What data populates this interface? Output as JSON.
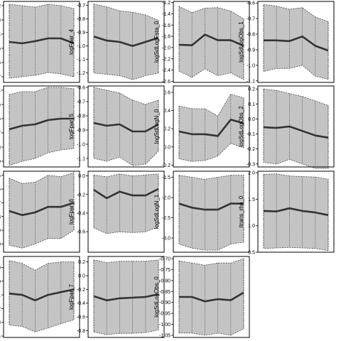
{
  "chart_data": [
    {
      "type": "line",
      "ylabel": "logFpar_0",
      "yticks": [
        "-0.2",
        "-0.3",
        "-0.4",
        "-0.5",
        "-0.6",
        "-0.7"
      ],
      "ylim": [
        -0.74,
        -0.17
      ],
      "x": [
        1,
        2,
        3,
        4,
        5,
        6
      ],
      "series": [
        {
          "values": [
            -0.455,
            -0.465,
            -0.45,
            -0.43,
            -0.43,
            -0.465
          ]
        }
      ],
      "band_upper": [
        -0.19,
        -0.2,
        -0.21,
        -0.19,
        -0.2,
        -0.22
      ],
      "band_lower": [
        -0.71,
        -0.7,
        -0.69,
        -0.67,
        -0.68,
        -0.7
      ]
    },
    {
      "type": "line",
      "ylabel": "logFpar_4",
      "yticks": [
        "-0.7",
        "-0.8",
        "-0.9",
        "-1.0",
        "-1.1",
        "-1.2"
      ],
      "ylim": [
        -1.27,
        -0.67
      ],
      "x": [
        1,
        2,
        3,
        4,
        5,
        6
      ],
      "series": [
        {
          "values": [
            -0.93,
            -0.96,
            -0.97,
            -1.0,
            -0.97,
            -0.94
          ]
        }
      ],
      "band_upper": [
        -0.69,
        -0.71,
        -0.74,
        -0.75,
        -0.77,
        -0.81
      ],
      "band_lower": [
        -1.2,
        -1.21,
        -1.22,
        -1.25,
        -1.22,
        -1.2
      ]
    },
    {
      "type": "line",
      "ylabel": "logSdLogFsta_0",
      "yticks": [
        "-1.2",
        "-1.4",
        "-1.6",
        "-1.8",
        "-2.0",
        "-2.2",
        "-2.4",
        "-2.6"
      ],
      "ylim": [
        -2.62,
        -1.18
      ],
      "x": [
        1,
        2,
        3,
        4,
        5,
        6
      ],
      "series": [
        {
          "values": [
            -1.95,
            -1.96,
            -1.77,
            -1.87,
            -1.87,
            -1.97
          ]
        }
      ],
      "band_upper": [
        -1.27,
        -1.38,
        -1.3,
        -1.29,
        -1.35,
        -1.49
      ],
      "band_lower": [
        -2.42,
        -2.53,
        -2.38,
        -2.5,
        -2.45,
        -2.57
      ]
    },
    {
      "type": "line",
      "ylabel": "logSdLogObs_1",
      "yticks": [
        "-0.6",
        "-0.7",
        "-0.8",
        "-0.9",
        "-1.0",
        "-1.1"
      ],
      "ylim": [
        -1.11,
        -0.59
      ],
      "x": [
        1,
        2,
        3,
        4,
        5,
        6
      ],
      "series": [
        {
          "values": [
            -0.84,
            -0.84,
            -0.845,
            -0.815,
            -0.875,
            -0.905
          ]
        }
      ],
      "band_upper": [
        -0.61,
        -0.62,
        -0.64,
        -0.63,
        -0.69,
        -0.72
      ],
      "band_lower": [
        -1.04,
        -1.02,
        -1.02,
        -1.0,
        -1.07,
        -1.09
      ]
    },
    {
      "type": "line",
      "ylabel": "logFpar_1",
      "yticks": [
        "-0.4",
        "-0.5",
        "-0.6",
        "-0.7",
        "-0.8",
        "-0.9"
      ],
      "ylim": [
        -0.94,
        -0.37
      ],
      "x": [
        1,
        2,
        3,
        4,
        5,
        6
      ],
      "series": [
        {
          "values": [
            -0.675,
            -0.65,
            -0.64,
            -0.61,
            -0.6,
            -0.6
          ]
        }
      ],
      "band_upper": [
        -0.43,
        -0.41,
        -0.41,
        -0.38,
        -0.38,
        -0.39
      ],
      "band_lower": [
        -0.93,
        -0.9,
        -0.88,
        -0.84,
        -0.82,
        -0.81
      ]
    },
    {
      "type": "line",
      "ylabel": "logFpar_5",
      "yticks": [
        "-0.6",
        "-0.7",
        "-0.8",
        "-0.9",
        "-1.0",
        "-1.1"
      ],
      "ylim": [
        -1.16,
        -0.59
      ],
      "x": [
        1,
        2,
        3,
        4,
        5,
        6
      ],
      "series": [
        {
          "values": [
            -0.85,
            -0.87,
            -0.86,
            -0.91,
            -0.91,
            -0.86
          ]
        }
      ],
      "band_upper": [
        -0.6,
        -0.62,
        -0.64,
        -0.69,
        -0.72,
        -0.69
      ],
      "band_lower": [
        -1.1,
        -1.12,
        -1.09,
        -1.15,
        -1.14,
        -1.05
      ]
    },
    {
      "type": "line",
      "ylabel": "logSdLogN_0",
      "yticks": [
        "0.6",
        "0.4",
        "0.2",
        "0.0",
        "-0.2"
      ],
      "ylim": [
        -0.22,
        0.67
      ],
      "x": [
        1,
        2,
        3,
        4,
        5,
        6
      ],
      "series": [
        {
          "values": [
            0.17,
            0.14,
            0.14,
            0.12,
            0.3,
            0.26
          ]
        }
      ],
      "band_upper": [
        0.45,
        0.42,
        0.42,
        0.34,
        0.58,
        0.54
      ],
      "band_lower": [
        -0.13,
        -0.16,
        -0.15,
        -0.1,
        0.04,
        -0.01
      ]
    },
    {
      "type": "line",
      "ylabel": "logSdLogObs_2",
      "yticks": [
        "0.2",
        "0.1",
        "0.0",
        "-0.1",
        "-0.2",
        "-0.3"
      ],
      "ylim": [
        -0.32,
        0.22
      ],
      "x": [
        1,
        2,
        3,
        4,
        5,
        6
      ],
      "series": [
        {
          "values": [
            -0.055,
            -0.06,
            -0.05,
            -0.08,
            -0.11,
            -0.125
          ]
        }
      ],
      "band_upper": [
        0.2,
        0.19,
        0.17,
        0.15,
        0.12,
        0.09
      ],
      "band_lower": [
        -0.29,
        -0.3,
        -0.27,
        -0.3,
        -0.33,
        -0.33
      ]
    },
    {
      "type": "line",
      "ylabel": "logFpar_2",
      "yticks": [
        "-0.5",
        "-0.6",
        "-0.7",
        "-0.8",
        "-0.9",
        "-1.0"
      ],
      "ylim": [
        -1.06,
        -0.47
      ],
      "x": [
        1,
        2,
        3,
        4,
        5,
        6
      ],
      "series": [
        {
          "values": [
            -0.76,
            -0.79,
            -0.77,
            -0.73,
            -0.73,
            -0.7
          ]
        }
      ],
      "band_upper": [
        -0.52,
        -0.56,
        -0.55,
        -0.5,
        -0.51,
        -0.48
      ],
      "band_lower": [
        -1.01,
        -1.03,
        -1.0,
        -0.96,
        -0.96,
        -0.9
      ]
    },
    {
      "type": "line",
      "ylabel": "logFpar_6",
      "yticks": [
        "0.0",
        "-0.2",
        "-0.4",
        "-0.6"
      ],
      "ylim": [
        -0.82,
        0.05
      ],
      "x": [
        1,
        2,
        3,
        4,
        5,
        6
      ],
      "series": [
        {
          "values": [
            -0.15,
            -0.24,
            -0.17,
            -0.21,
            -0.21,
            -0.14
          ]
        }
      ],
      "band_upper": [
        0.01,
        -0.01,
        0.02,
        0.0,
        0.01,
        0.02
      ],
      "band_lower": [
        -0.56,
        -0.62,
        -0.6,
        -0.61,
        -0.6,
        -0.55
      ]
    },
    {
      "type": "line",
      "ylabel": "logSdLogN_1",
      "yticks": [
        "-1.5",
        "-2.0",
        "-2.5",
        "-3.0"
      ],
      "ylim": [
        -3.35,
        -1.35
      ],
      "x": [
        1,
        2,
        3,
        4,
        5,
        6
      ],
      "series": [
        {
          "values": [
            -2.15,
            -2.25,
            -2.3,
            -2.3,
            -2.15,
            -2.15
          ]
        }
      ],
      "band_upper": [
        -1.45,
        -1.5,
        -1.55,
        -1.5,
        -1.45,
        -1.45
      ],
      "band_lower": [
        -3.15,
        -3.25,
        -3.3,
        -3.3,
        -3.15,
        -3.1
      ]
    },
    {
      "type": "line",
      "ylabel": "itrans_rho_0",
      "yticks": [
        "2.0",
        "1.5",
        "1.0",
        "0.5"
      ],
      "ylim": [
        0.5,
        2.03
      ],
      "x": [
        1,
        2,
        3,
        4,
        5,
        6
      ],
      "series": [
        {
          "values": [
            1.28,
            1.27,
            1.33,
            1.28,
            1.25,
            1.2
          ]
        }
      ],
      "band_upper": [
        1.97,
        1.98,
        1.94,
        1.93,
        1.92,
        1.88
      ],
      "band_lower": [
        0.57,
        0.58,
        0.59,
        0.58,
        0.57,
        0.53
      ]
    },
    {
      "type": "line",
      "ylabel": "logFpar_3",
      "yticks": [
        "-0.9",
        "-1.0",
        "-1.1",
        "-1.2",
        "-1.3",
        "-1.4"
      ],
      "ylim": [
        -1.41,
        -0.82
      ],
      "x": [
        1,
        2,
        3,
        4,
        5,
        6
      ],
      "series": [
        {
          "values": [
            -1.09,
            -1.1,
            -1.14,
            -1.1,
            -1.08,
            -1.06
          ]
        }
      ],
      "band_upper": [
        -0.85,
        -0.87,
        -0.92,
        -0.87,
        -0.86,
        -0.86
      ],
      "band_lower": [
        -1.32,
        -1.33,
        -1.37,
        -1.34,
        -1.31,
        -1.28
      ]
    },
    {
      "type": "line",
      "ylabel": "logFpar_7",
      "yticks": [
        "0.2",
        "0.0",
        "-0.2",
        "-0.4",
        "-0.6",
        "-0.8"
      ],
      "ylim": [
        -0.9,
        0.28
      ],
      "x": [
        1,
        2,
        3,
        4,
        5,
        6
      ],
      "series": [
        {
          "values": [
            -0.3,
            -0.36,
            -0.33,
            -0.32,
            -0.31,
            -0.27
          ]
        }
      ],
      "band_upper": [
        0.23,
        0.19,
        0.21,
        0.21,
        0.21,
        0.23
      ],
      "band_lower": [
        -0.82,
        -0.86,
        -0.84,
        -0.84,
        -0.83,
        -0.79
      ]
    },
    {
      "type": "line",
      "ylabel": "logSdLogObs_0",
      "yticks": [
        "-0.70",
        "-0.75",
        "-0.80",
        "-0.85",
        "-0.90",
        "-0.95",
        "-1.00",
        "-1.05"
      ],
      "ylim": [
        -1.06,
        -0.69
      ],
      "x": [
        1,
        2,
        3,
        4,
        5,
        6
      ],
      "series": [
        {
          "values": [
            -0.875,
            -0.875,
            -0.895,
            -0.885,
            -0.89,
            -0.855
          ]
        }
      ],
      "band_upper": [
        -0.71,
        -0.72,
        -0.73,
        -0.72,
        -0.72,
        -0.7
      ],
      "band_lower": [
        -1.04,
        -1.04,
        -1.05,
        -1.04,
        -1.05,
        -1.02
      ]
    }
  ]
}
